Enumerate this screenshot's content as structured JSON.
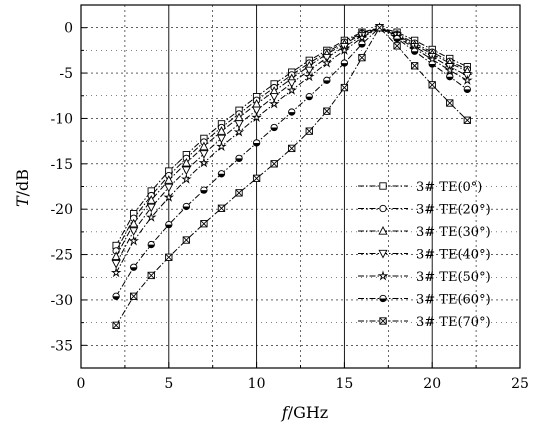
{
  "chart_data": {
    "type": "line",
    "title": "",
    "xlabel_var": "f",
    "xlabel_unit": "/GHz",
    "ylabel_var": "T",
    "ylabel_unit": "/dB",
    "xlim": [
      0,
      25
    ],
    "ylim": [
      -37.5,
      2.5
    ],
    "xticks": [
      "0",
      "5",
      "10",
      "15",
      "20",
      "25"
    ],
    "yticks": [
      "0",
      "-5",
      "-10",
      "-15",
      "-20",
      "-25",
      "-30",
      "-35"
    ],
    "grid": true,
    "legend_position": "lower-right",
    "series": [
      {
        "name": "3# TE(0°)",
        "marker": "square",
        "x": [
          2,
          3,
          4,
          5,
          6,
          7,
          8,
          9,
          10,
          11,
          12,
          13,
          14,
          15,
          16,
          17,
          18,
          19,
          20,
          21,
          22
        ],
        "y": [
          -24,
          -20.5,
          -18,
          -15.8,
          -14,
          -12.2,
          -10.6,
          -9.1,
          -7.6,
          -6.2,
          -4.9,
          -3.6,
          -2.5,
          -1.4,
          -0.5,
          0,
          -0.5,
          -1.4,
          -2.4,
          -3.4,
          -4.3
        ]
      },
      {
        "name": "3# TE(20°)",
        "marker": "circle",
        "x": [
          2,
          3,
          4,
          5,
          6,
          7,
          8,
          9,
          10,
          11,
          12,
          13,
          14,
          15,
          16,
          17,
          18,
          19,
          20,
          21,
          22
        ],
        "y": [
          -24.6,
          -21,
          -18.5,
          -16.3,
          -14.4,
          -12.6,
          -11,
          -9.5,
          -8,
          -6.6,
          -5.2,
          -3.9,
          -2.7,
          -1.6,
          -0.6,
          0,
          -0.7,
          -1.7,
          -2.7,
          -3.7,
          -4.6
        ]
      },
      {
        "name": "3# TE(30°)",
        "marker": "triangle-up",
        "x": [
          2,
          3,
          4,
          5,
          6,
          7,
          8,
          9,
          10,
          11,
          12,
          13,
          14,
          15,
          16,
          17,
          18,
          19,
          20,
          21,
          22
        ],
        "y": [
          -25.2,
          -21.6,
          -19,
          -16.8,
          -14.9,
          -13.1,
          -11.4,
          -9.9,
          -8.4,
          -7,
          -5.6,
          -4.2,
          -2.9,
          -1.8,
          -0.7,
          0,
          -0.8,
          -1.9,
          -2.9,
          -3.9,
          -4.8
        ]
      },
      {
        "name": "3# TE(40°)",
        "marker": "triangle-down",
        "x": [
          2,
          3,
          4,
          5,
          6,
          7,
          8,
          9,
          10,
          11,
          12,
          13,
          14,
          15,
          16,
          17,
          18,
          19,
          20,
          21,
          22
        ],
        "y": [
          -26,
          -22.4,
          -19.8,
          -17.6,
          -15.7,
          -13.9,
          -12.2,
          -10.6,
          -9.1,
          -7.6,
          -6.1,
          -4.7,
          -3.3,
          -2.1,
          -0.9,
          0,
          -0.9,
          -2.1,
          -3.2,
          -4.3,
          -5.3
        ]
      },
      {
        "name": "3# TE(50°)",
        "marker": "star",
        "x": [
          2,
          3,
          4,
          5,
          6,
          7,
          8,
          9,
          10,
          11,
          12,
          13,
          14,
          15,
          16,
          17,
          18,
          19,
          20,
          21,
          22
        ],
        "y": [
          -27,
          -23.5,
          -20.9,
          -18.7,
          -16.7,
          -14.9,
          -13.1,
          -11.5,
          -9.9,
          -8.4,
          -6.9,
          -5.4,
          -3.9,
          -2.5,
          -1.1,
          0,
          -1,
          -2.3,
          -3.5,
          -4.7,
          -5.8
        ]
      },
      {
        "name": "3# TE(60°)",
        "marker": "half-circle",
        "x": [
          2,
          3,
          4,
          5,
          6,
          7,
          8,
          9,
          10,
          11,
          12,
          13,
          14,
          15,
          16,
          17,
          18,
          19,
          20,
          21,
          22
        ],
        "y": [
          -29.6,
          -26.4,
          -23.9,
          -21.7,
          -19.7,
          -17.9,
          -16.1,
          -14.4,
          -12.7,
          -11,
          -9.3,
          -7.6,
          -5.8,
          -3.9,
          -1.8,
          0,
          -1.2,
          -2.6,
          -4,
          -5.4,
          -6.8
        ]
      },
      {
        "name": "3# TE(70°)",
        "marker": "x-square",
        "x": [
          2,
          3,
          4,
          5,
          6,
          7,
          8,
          9,
          10,
          11,
          12,
          13,
          14,
          15,
          16,
          17,
          18,
          19,
          20,
          21,
          22
        ],
        "y": [
          -32.8,
          -29.6,
          -27.3,
          -25.3,
          -23.4,
          -21.6,
          -19.9,
          -18.2,
          -16.6,
          -15,
          -13.3,
          -11.4,
          -9.2,
          -6.6,
          -3.3,
          0,
          -2,
          -4.2,
          -6.3,
          -8.3,
          -10.2
        ]
      }
    ]
  }
}
